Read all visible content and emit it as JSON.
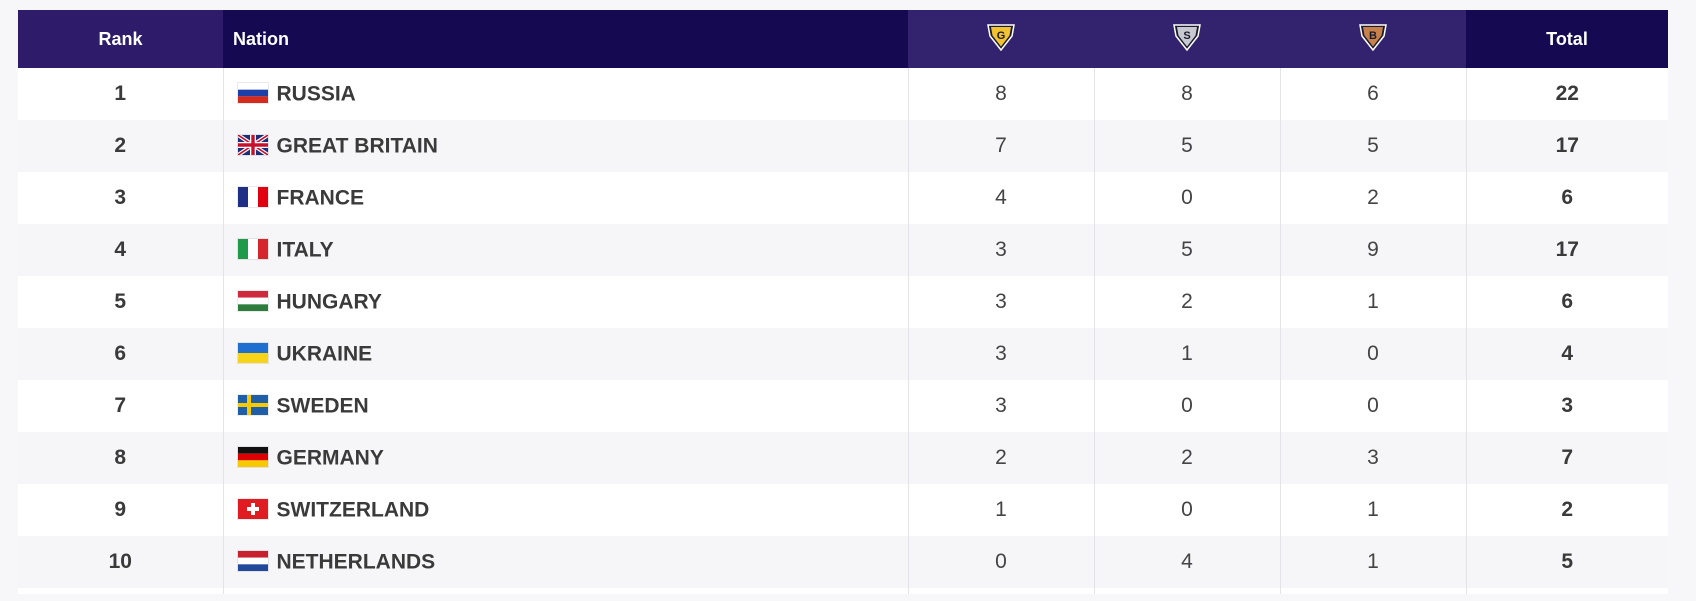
{
  "header": {
    "rank": "Rank",
    "nation": "Nation",
    "gold_letter": "G",
    "silver_letter": "S",
    "bronze_letter": "B",
    "total": "Total"
  },
  "colors": {
    "header_bg": "#150a52",
    "gold": "#f2c230",
    "silver": "#c8c8d0",
    "bronze": "#c8814a"
  },
  "rows": [
    {
      "rank": "1",
      "nation": "RUSSIA",
      "flag": "russia-flag",
      "gold": "8",
      "silver": "8",
      "bronze": "6",
      "total": "22"
    },
    {
      "rank": "2",
      "nation": "GREAT BRITAIN",
      "flag": "great-britain-flag",
      "gold": "7",
      "silver": "5",
      "bronze": "5",
      "total": "17"
    },
    {
      "rank": "3",
      "nation": "FRANCE",
      "flag": "france-flag",
      "gold": "4",
      "silver": "0",
      "bronze": "2",
      "total": "6"
    },
    {
      "rank": "4",
      "nation": "ITALY",
      "flag": "italy-flag",
      "gold": "3",
      "silver": "5",
      "bronze": "9",
      "total": "17"
    },
    {
      "rank": "5",
      "nation": "HUNGARY",
      "flag": "hungary-flag",
      "gold": "3",
      "silver": "2",
      "bronze": "1",
      "total": "6"
    },
    {
      "rank": "6",
      "nation": "UKRAINE",
      "flag": "ukraine-flag",
      "gold": "3",
      "silver": "1",
      "bronze": "0",
      "total": "4"
    },
    {
      "rank": "7",
      "nation": "SWEDEN",
      "flag": "sweden-flag",
      "gold": "3",
      "silver": "0",
      "bronze": "0",
      "total": "3"
    },
    {
      "rank": "8",
      "nation": "GERMANY",
      "flag": "germany-flag",
      "gold": "2",
      "silver": "2",
      "bronze": "3",
      "total": "7"
    },
    {
      "rank": "9",
      "nation": "SWITZERLAND",
      "flag": "switzerland-flag",
      "gold": "1",
      "silver": "0",
      "bronze": "1",
      "total": "2"
    },
    {
      "rank": "10",
      "nation": "NETHERLANDS",
      "flag": "netherlands-flag",
      "gold": "0",
      "silver": "4",
      "bronze": "1",
      "total": "5"
    }
  ]
}
